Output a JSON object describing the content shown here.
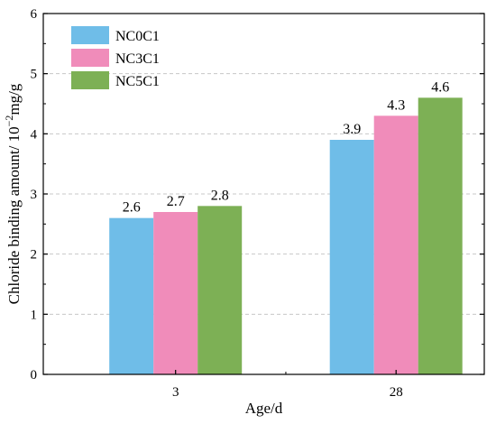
{
  "chart_data": {
    "type": "bar",
    "categories": [
      "3",
      "28"
    ],
    "series": [
      {
        "name": "NC0C1",
        "values": [
          2.6,
          3.9
        ],
        "labels": [
          "2.6",
          "3.9"
        ],
        "color": "#6fbde8"
      },
      {
        "name": "NC3C1",
        "values": [
          2.7,
          4.3
        ],
        "labels": [
          "2.7",
          "4.3"
        ],
        "color": "#f08cba"
      },
      {
        "name": "NC5C1",
        "values": [
          2.8,
          4.6
        ],
        "labels": [
          "2.8",
          "4.6"
        ],
        "color": "#7db055"
      }
    ],
    "xlabel": "Age/d",
    "ylabel_text": "Chloride binding amount/ 10",
    "ylabel_sup": "−2",
    "ylabel_unit": "mg/g",
    "ylim": [
      0,
      6
    ],
    "yticks": [
      "0",
      "1",
      "2",
      "3",
      "4",
      "5",
      "6"
    ],
    "grid": true,
    "legend_position": "top-left"
  }
}
